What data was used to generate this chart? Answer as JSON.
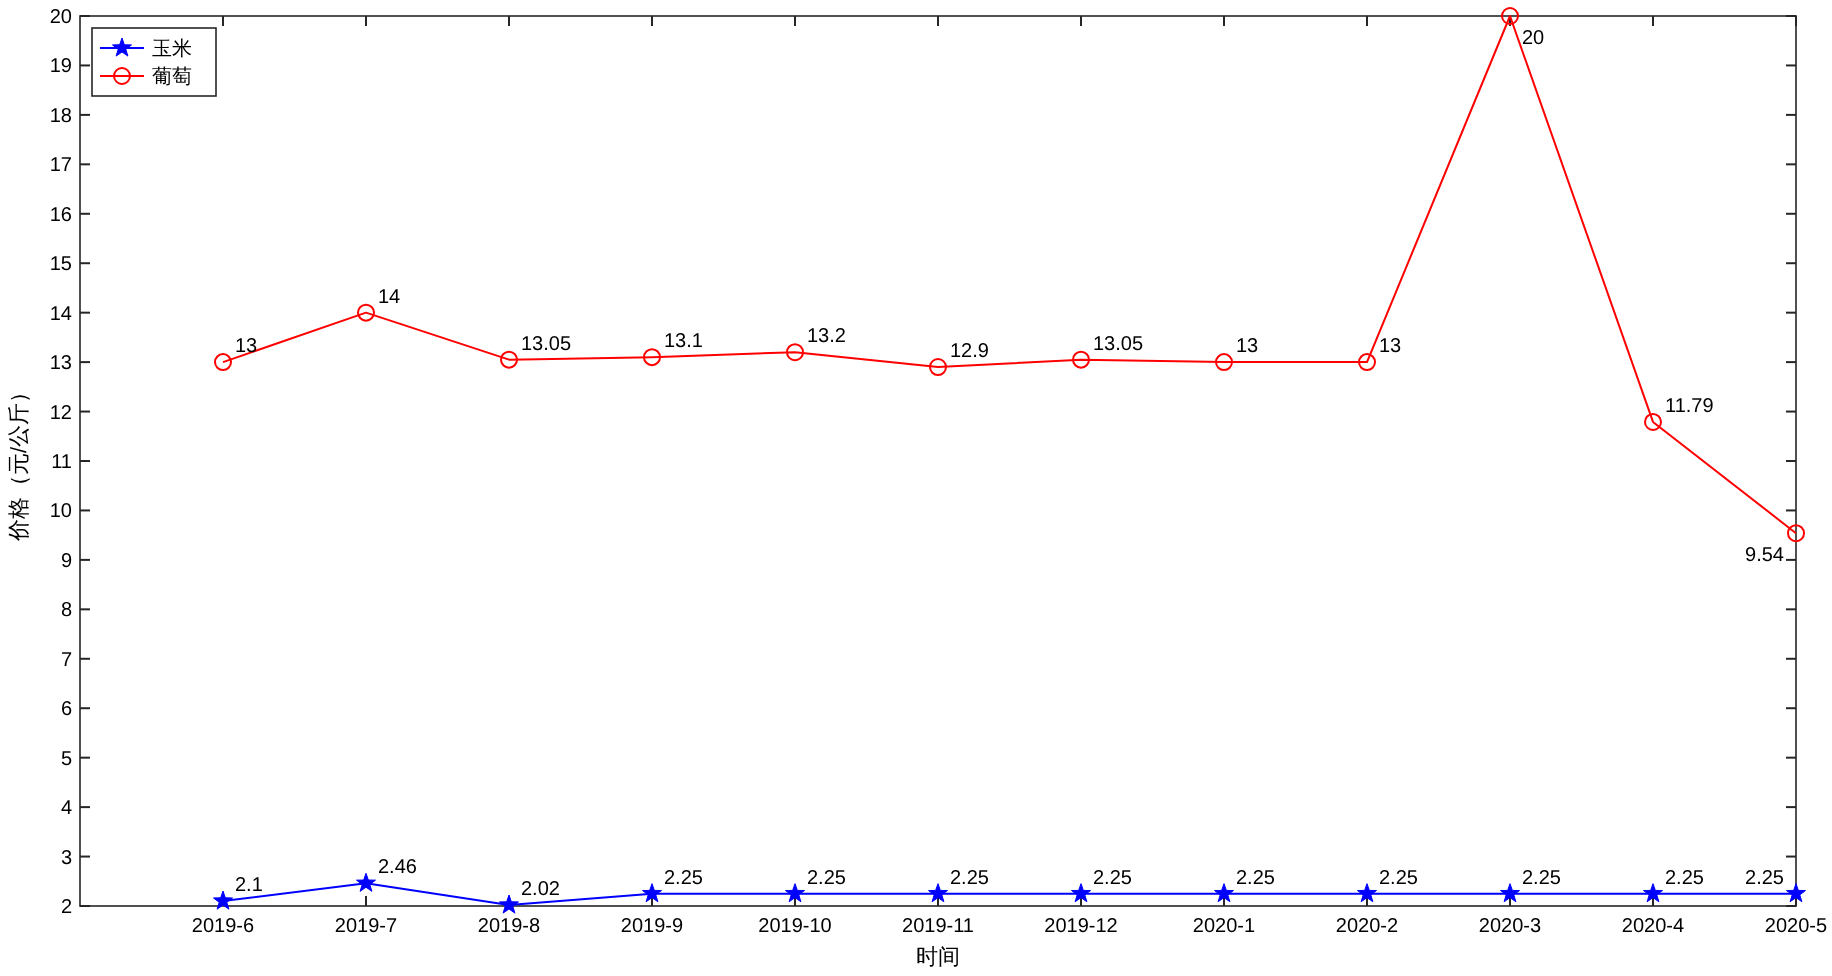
{
  "chart_data": {
    "type": "line",
    "xlabel": "时间",
    "ylabel": "价格（元/公斤）",
    "categories": [
      "2019-6",
      "2019-7",
      "2019-8",
      "2019-9",
      "2019-10",
      "2019-11",
      "2019-12",
      "2020-1",
      "2020-2",
      "2020-3",
      "2020-4",
      "2020-5"
    ],
    "series": [
      {
        "name": "玉米",
        "color": "#0000ff",
        "marker": "star",
        "values": [
          2.1,
          2.46,
          2.02,
          2.25,
          2.25,
          2.25,
          2.25,
          2.25,
          2.25,
          2.25,
          2.25,
          2.25
        ]
      },
      {
        "name": "葡萄",
        "color": "#ff0000",
        "marker": "circle",
        "values": [
          13,
          14,
          13.05,
          13.1,
          13.2,
          12.9,
          13.05,
          13,
          13,
          20,
          11.79,
          9.54
        ]
      }
    ],
    "ylim": [
      2,
      20
    ],
    "yticks": [
      2,
      3,
      4,
      5,
      6,
      7,
      8,
      9,
      10,
      11,
      12,
      13,
      14,
      15,
      16,
      17,
      18,
      19,
      20
    ],
    "grid": false,
    "legend": "top left",
    "data_labels": true,
    "line_style": "solid"
  }
}
